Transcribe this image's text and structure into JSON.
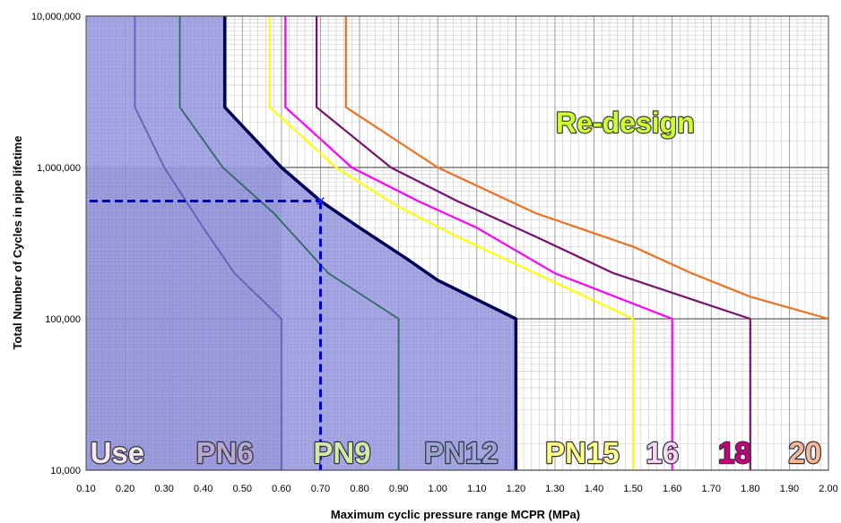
{
  "chart_data": {
    "type": "line",
    "title": "",
    "xlabel": "Maximum cyclic pressure range MCPR (MPa)",
    "ylabel": "Total Number of Cycles in pipe lifetime",
    "xlim": [
      0.1,
      2.0
    ],
    "ylim": [
      10000,
      10000000
    ],
    "yscale": "log",
    "grid": true,
    "x_ticks": [
      "0.10",
      "0.20",
      "0.30",
      "0.40",
      "0.50",
      "0.60",
      "0.70",
      "0.80",
      "0.90",
      "1.00",
      "1.10",
      "1.20",
      "1.30",
      "1.40",
      "1.50",
      "1.60",
      "1.70",
      "1.80",
      "1.90",
      "2.00"
    ],
    "y_ticks": [
      {
        "value": 10000,
        "label": "10,000"
      },
      {
        "value": 100000,
        "label": "100,000"
      },
      {
        "value": 1000000,
        "label": "1,000,000"
      },
      {
        "value": 10000000,
        "label": "10,000,000"
      }
    ],
    "series": [
      {
        "color": "#6060b8",
        "width": 1.8,
        "points": [
          [
            0.225,
            10000000
          ],
          [
            0.225,
            2500000
          ],
          [
            0.3,
            1000000
          ],
          [
            0.4,
            400000
          ],
          [
            0.48,
            200000
          ],
          [
            0.6,
            100000
          ],
          [
            0.6,
            10000
          ]
        ]
      },
      {
        "color": "#2e6a62",
        "width": 1.8,
        "points": [
          [
            0.34,
            10000000
          ],
          [
            0.34,
            2500000
          ],
          [
            0.45,
            1000000
          ],
          [
            0.58,
            500000
          ],
          [
            0.72,
            200000
          ],
          [
            0.9,
            100000
          ],
          [
            0.9,
            10000
          ]
        ]
      },
      {
        "color": "#000055",
        "width": 3.5,
        "points": [
          [
            0.455,
            10000000
          ],
          [
            0.455,
            2500000
          ],
          [
            0.6,
            1000000
          ],
          [
            0.7,
            600000
          ],
          [
            0.8,
            400000
          ],
          [
            0.92,
            250000
          ],
          [
            1.0,
            180000
          ],
          [
            1.2,
            100000
          ],
          [
            1.2,
            10000
          ]
        ]
      },
      {
        "color": "#ffff00",
        "width": 2.2,
        "points": [
          [
            0.57,
            10000000
          ],
          [
            0.57,
            2500000
          ],
          [
            0.74,
            1000000
          ],
          [
            0.9,
            550000
          ],
          [
            1.05,
            350000
          ],
          [
            1.25,
            200000
          ],
          [
            1.5,
            100000
          ],
          [
            1.5,
            10000
          ]
        ]
      },
      {
        "color": "#ff00ff",
        "width": 2.2,
        "points": [
          [
            0.61,
            10000000
          ],
          [
            0.61,
            2500000
          ],
          [
            0.78,
            1000000
          ],
          [
            0.95,
            600000
          ],
          [
            1.1,
            400000
          ],
          [
            1.3,
            200000
          ],
          [
            1.6,
            100000
          ],
          [
            1.6,
            10000
          ]
        ]
      },
      {
        "color": "#7a1070",
        "width": 2.2,
        "points": [
          [
            0.69,
            10000000
          ],
          [
            0.69,
            2500000
          ],
          [
            0.88,
            1000000
          ],
          [
            1.05,
            600000
          ],
          [
            1.25,
            350000
          ],
          [
            1.45,
            200000
          ],
          [
            1.8,
            100000
          ],
          [
            1.8,
            10000
          ]
        ]
      },
      {
        "color": "#f07020",
        "width": 2.2,
        "points": [
          [
            0.765,
            10000000
          ],
          [
            0.765,
            2500000
          ],
          [
            1.0,
            1000000
          ],
          [
            1.25,
            500000
          ],
          [
            1.5,
            300000
          ],
          [
            1.65,
            200000
          ],
          [
            1.8,
            140000
          ],
          [
            2.0,
            100000
          ]
        ]
      }
    ],
    "use_region_points": [
      [
        0.1,
        10000000
      ],
      [
        0.455,
        10000000
      ],
      [
        0.455,
        2500000
      ],
      [
        0.6,
        1000000
      ],
      [
        0.7,
        600000
      ],
      [
        0.8,
        400000
      ],
      [
        0.92,
        250000
      ],
      [
        1.0,
        180000
      ],
      [
        1.2,
        100000
      ],
      [
        1.2,
        10000
      ],
      [
        0.1,
        10000
      ]
    ],
    "highlight_box_top": 1000000,
    "reference_point": {
      "x": 0.7,
      "y": 600000
    },
    "region_labels": [
      {
        "text": "Use",
        "x": 0.18,
        "fill": "#f4e8e8"
      },
      {
        "text": "PN6",
        "x": 0.455,
        "fill": "#b8a8cc"
      },
      {
        "text": "PN9",
        "x": 0.755,
        "fill": "#d4e8a8"
      },
      {
        "text": "PN12",
        "x": 1.06,
        "fill": "#9aa6d4"
      },
      {
        "text": "PN15",
        "x": 1.37,
        "fill": "#ffff88"
      },
      {
        "text": "16",
        "x": 1.575,
        "fill": "#f8d8f0"
      },
      {
        "text": "18",
        "x": 1.76,
        "fill": "#c8007a"
      },
      {
        "text": "20",
        "x": 1.94,
        "fill": "#f8b890"
      }
    ],
    "annotation": {
      "text": "Re-design",
      "x": 1.48,
      "y": 2000000,
      "fill": "#ccff33"
    }
  }
}
